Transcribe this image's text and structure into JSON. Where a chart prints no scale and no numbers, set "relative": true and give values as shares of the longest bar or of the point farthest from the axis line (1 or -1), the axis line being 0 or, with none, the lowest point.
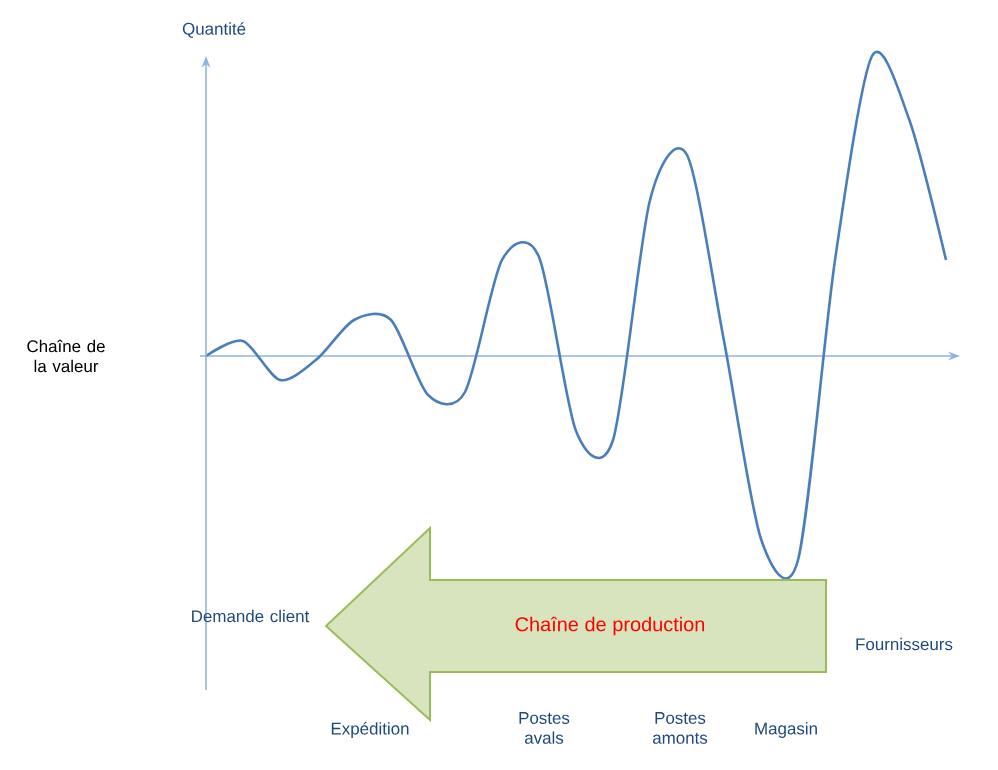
{
  "chart_data": {
    "type": "line",
    "relative": true,
    "ylabel": "Quantité",
    "categories": [
      null,
      null,
      null,
      null,
      null,
      null,
      null,
      null,
      null,
      null,
      null,
      null,
      null,
      null,
      null,
      null,
      null,
      null,
      null,
      null,
      null
    ],
    "series": [
      {
        "color": "#4a7ebb",
        "values": [
          0,
          0.05,
          -0.08,
          -0.01,
          0.12,
          0.12,
          -0.13,
          -0.12,
          0.32,
          0.33,
          -0.25,
          -0.28,
          0.52,
          0.67,
          0.05,
          -0.61,
          -0.68,
          0.32,
          1,
          0.79,
          0.32
        ]
      }
    ],
    "marker": "none",
    "ref_lines": [
      {
        "axis": "y",
        "value": 0,
        "color": "#8eb4e3"
      }
    ],
    "annotations": [
      "Chaîne de la valeur",
      "Demande client",
      "Chaîne de production",
      "Fournisseurs",
      "Expédition",
      "Postes avals",
      "Postes amonts",
      "Magasin"
    ]
  }
}
